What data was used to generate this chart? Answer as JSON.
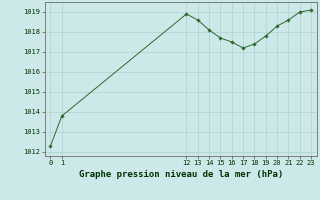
{
  "x": [
    0,
    1,
    12,
    13,
    14,
    15,
    16,
    17,
    18,
    19,
    20,
    21,
    22,
    23
  ],
  "y": [
    1012.3,
    1013.8,
    1018.9,
    1018.6,
    1018.1,
    1017.7,
    1017.5,
    1017.2,
    1017.4,
    1017.8,
    1018.3,
    1018.6,
    1019.0,
    1019.1
  ],
  "line_color": "#2d6a2d",
  "marker_color": "#2d6a2d",
  "bg_color": "#cce8e8",
  "grid_color": "#b0d0d0",
  "xlabel": "Graphe pression niveau de la mer (hPa)",
  "xlabel_fontsize": 6.5,
  "xlabel_fontweight": "bold",
  "xlabel_color": "#003300",
  "ylim": [
    1011.8,
    1019.5
  ],
  "yticks": [
    1012,
    1013,
    1014,
    1015,
    1016,
    1017,
    1018,
    1019
  ],
  "xticks": [
    0,
    1,
    12,
    13,
    14,
    15,
    16,
    17,
    18,
    19,
    20,
    21,
    22,
    23
  ],
  "tick_fontsize": 5.0,
  "tick_color": "#003300"
}
